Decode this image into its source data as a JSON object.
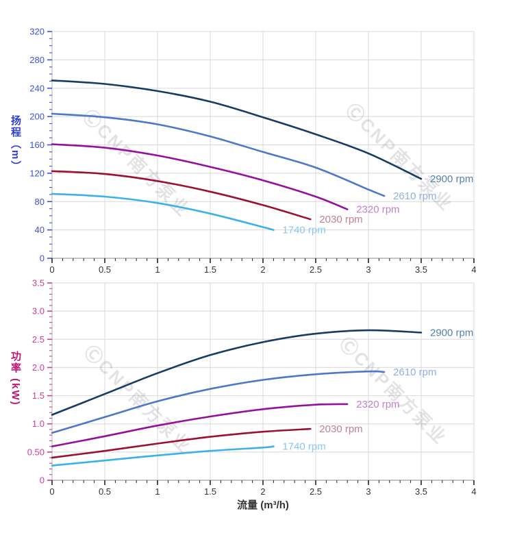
{
  "watermark": {
    "text": "ⒸCNP南方泵业"
  },
  "x_axis": {
    "title": "流量 (m³/h)",
    "min": 0,
    "max": 4,
    "major_step": 0.5,
    "minor_step": 0.1,
    "tick_labels": [
      "0",
      "0.5",
      "1",
      "1.5",
      "2",
      "2.5",
      "3",
      "3.5",
      "4"
    ],
    "tick_color": "#222222",
    "label_color": "#333333"
  },
  "chart_data": [
    {
      "type": "line",
      "title": "",
      "ylabel": "扬程（m）",
      "xlabel": "流量 (m³/h)",
      "ylim": [
        0,
        320
      ],
      "xlim": [
        0,
        4
      ],
      "grid": true,
      "y_major_step": 40,
      "y_minor_step": 10,
      "axis_color": "#3c52dc",
      "y_ticks": [
        {
          "v": 320,
          "label": "320"
        },
        {
          "v": 280,
          "label": "280"
        },
        {
          "v": 240,
          "label": "240"
        },
        {
          "v": 200,
          "label": "200"
        },
        {
          "v": 160,
          "label": "160"
        },
        {
          "v": 120,
          "label": "120"
        },
        {
          "v": 80,
          "label": "80"
        },
        {
          "v": 40,
          "label": "40"
        },
        {
          "v": 0,
          "label": "0"
        }
      ],
      "series": [
        {
          "name": "2900 rpm",
          "color": "#153c63",
          "label_color": "#5381ad",
          "x": [
            0,
            0.5,
            1,
            1.5,
            2,
            2.5,
            3,
            3.5
          ],
          "y": [
            251,
            246,
            236,
            221,
            199,
            175,
            148,
            112
          ]
        },
        {
          "name": "2610 rpm",
          "color": "#4d77c8",
          "label_color": "#8fafe0",
          "x": [
            0,
            0.5,
            1,
            1.5,
            2,
            2.5,
            3,
            3.15
          ],
          "y": [
            204,
            199,
            189,
            172,
            150,
            128,
            97,
            88
          ]
        },
        {
          "name": "2320 rpm",
          "color": "#95109d",
          "label_color": "#c080cc",
          "x": [
            0,
            0.5,
            1,
            1.5,
            2,
            2.5,
            2.8
          ],
          "y": [
            161,
            156,
            145,
            129,
            110,
            87,
            69
          ]
        },
        {
          "name": "2030 rpm",
          "color": "#9c1034",
          "label_color": "#c27f90",
          "x": [
            0,
            0.5,
            1,
            1.5,
            2,
            2.45
          ],
          "y": [
            123,
            119,
            109,
            94,
            75,
            55
          ]
        },
        {
          "name": "1740 rpm",
          "color": "#3ab1e8",
          "label_color": "#86c8f2",
          "x": [
            0,
            0.5,
            1,
            1.5,
            2,
            2.1
          ],
          "y": [
            91,
            87,
            78,
            63,
            44,
            40
          ]
        }
      ]
    },
    {
      "type": "line",
      "title": "",
      "ylabel": "功率 (kW)",
      "xlabel": "流量 (m³/h)",
      "ylim": [
        0,
        3.5
      ],
      "xlim": [
        0,
        4
      ],
      "grid": true,
      "y_major_step": 0.5,
      "y_minor_step": 0.1,
      "axis_color": "#cf3c92",
      "y_ticks": [
        {
          "v": 3.5,
          "label": "3.5"
        },
        {
          "v": 3.0,
          "label": "3.0"
        },
        {
          "v": 2.5,
          "label": "2.5"
        },
        {
          "v": 2.0,
          "label": "2.0"
        },
        {
          "v": 1.5,
          "label": "1.5"
        },
        {
          "v": 1.0,
          "label": "1.0"
        },
        {
          "v": 0.5,
          "label": "0.50"
        },
        {
          "v": 0,
          "label": "0"
        }
      ],
      "series": [
        {
          "name": "2900 rpm",
          "color": "#153c63",
          "label_color": "#5381ad",
          "x": [
            0,
            0.5,
            1,
            1.5,
            2,
            2.5,
            3,
            3.5
          ],
          "y": [
            1.16,
            1.53,
            1.9,
            2.22,
            2.45,
            2.6,
            2.66,
            2.62
          ]
        },
        {
          "name": "2610 rpm",
          "color": "#4d77c8",
          "label_color": "#8fafe0",
          "x": [
            0,
            0.5,
            1,
            1.5,
            2,
            2.5,
            3,
            3.15
          ],
          "y": [
            0.84,
            1.12,
            1.4,
            1.62,
            1.78,
            1.88,
            1.93,
            1.92
          ]
        },
        {
          "name": "2320 rpm",
          "color": "#95109d",
          "label_color": "#c080cc",
          "x": [
            0,
            0.5,
            1,
            1.5,
            2,
            2.5,
            2.8
          ],
          "y": [
            0.6,
            0.78,
            0.97,
            1.13,
            1.26,
            1.34,
            1.35
          ]
        },
        {
          "name": "2030 rpm",
          "color": "#9c1034",
          "label_color": "#c27f90",
          "x": [
            0,
            0.5,
            1,
            1.5,
            2,
            2.45
          ],
          "y": [
            0.4,
            0.52,
            0.65,
            0.77,
            0.86,
            0.91
          ]
        },
        {
          "name": "1740 rpm",
          "color": "#3ab1e8",
          "label_color": "#86c8f2",
          "x": [
            0,
            0.5,
            1,
            1.5,
            2,
            2.1
          ],
          "y": [
            0.26,
            0.35,
            0.44,
            0.52,
            0.58,
            0.6
          ]
        }
      ]
    }
  ]
}
